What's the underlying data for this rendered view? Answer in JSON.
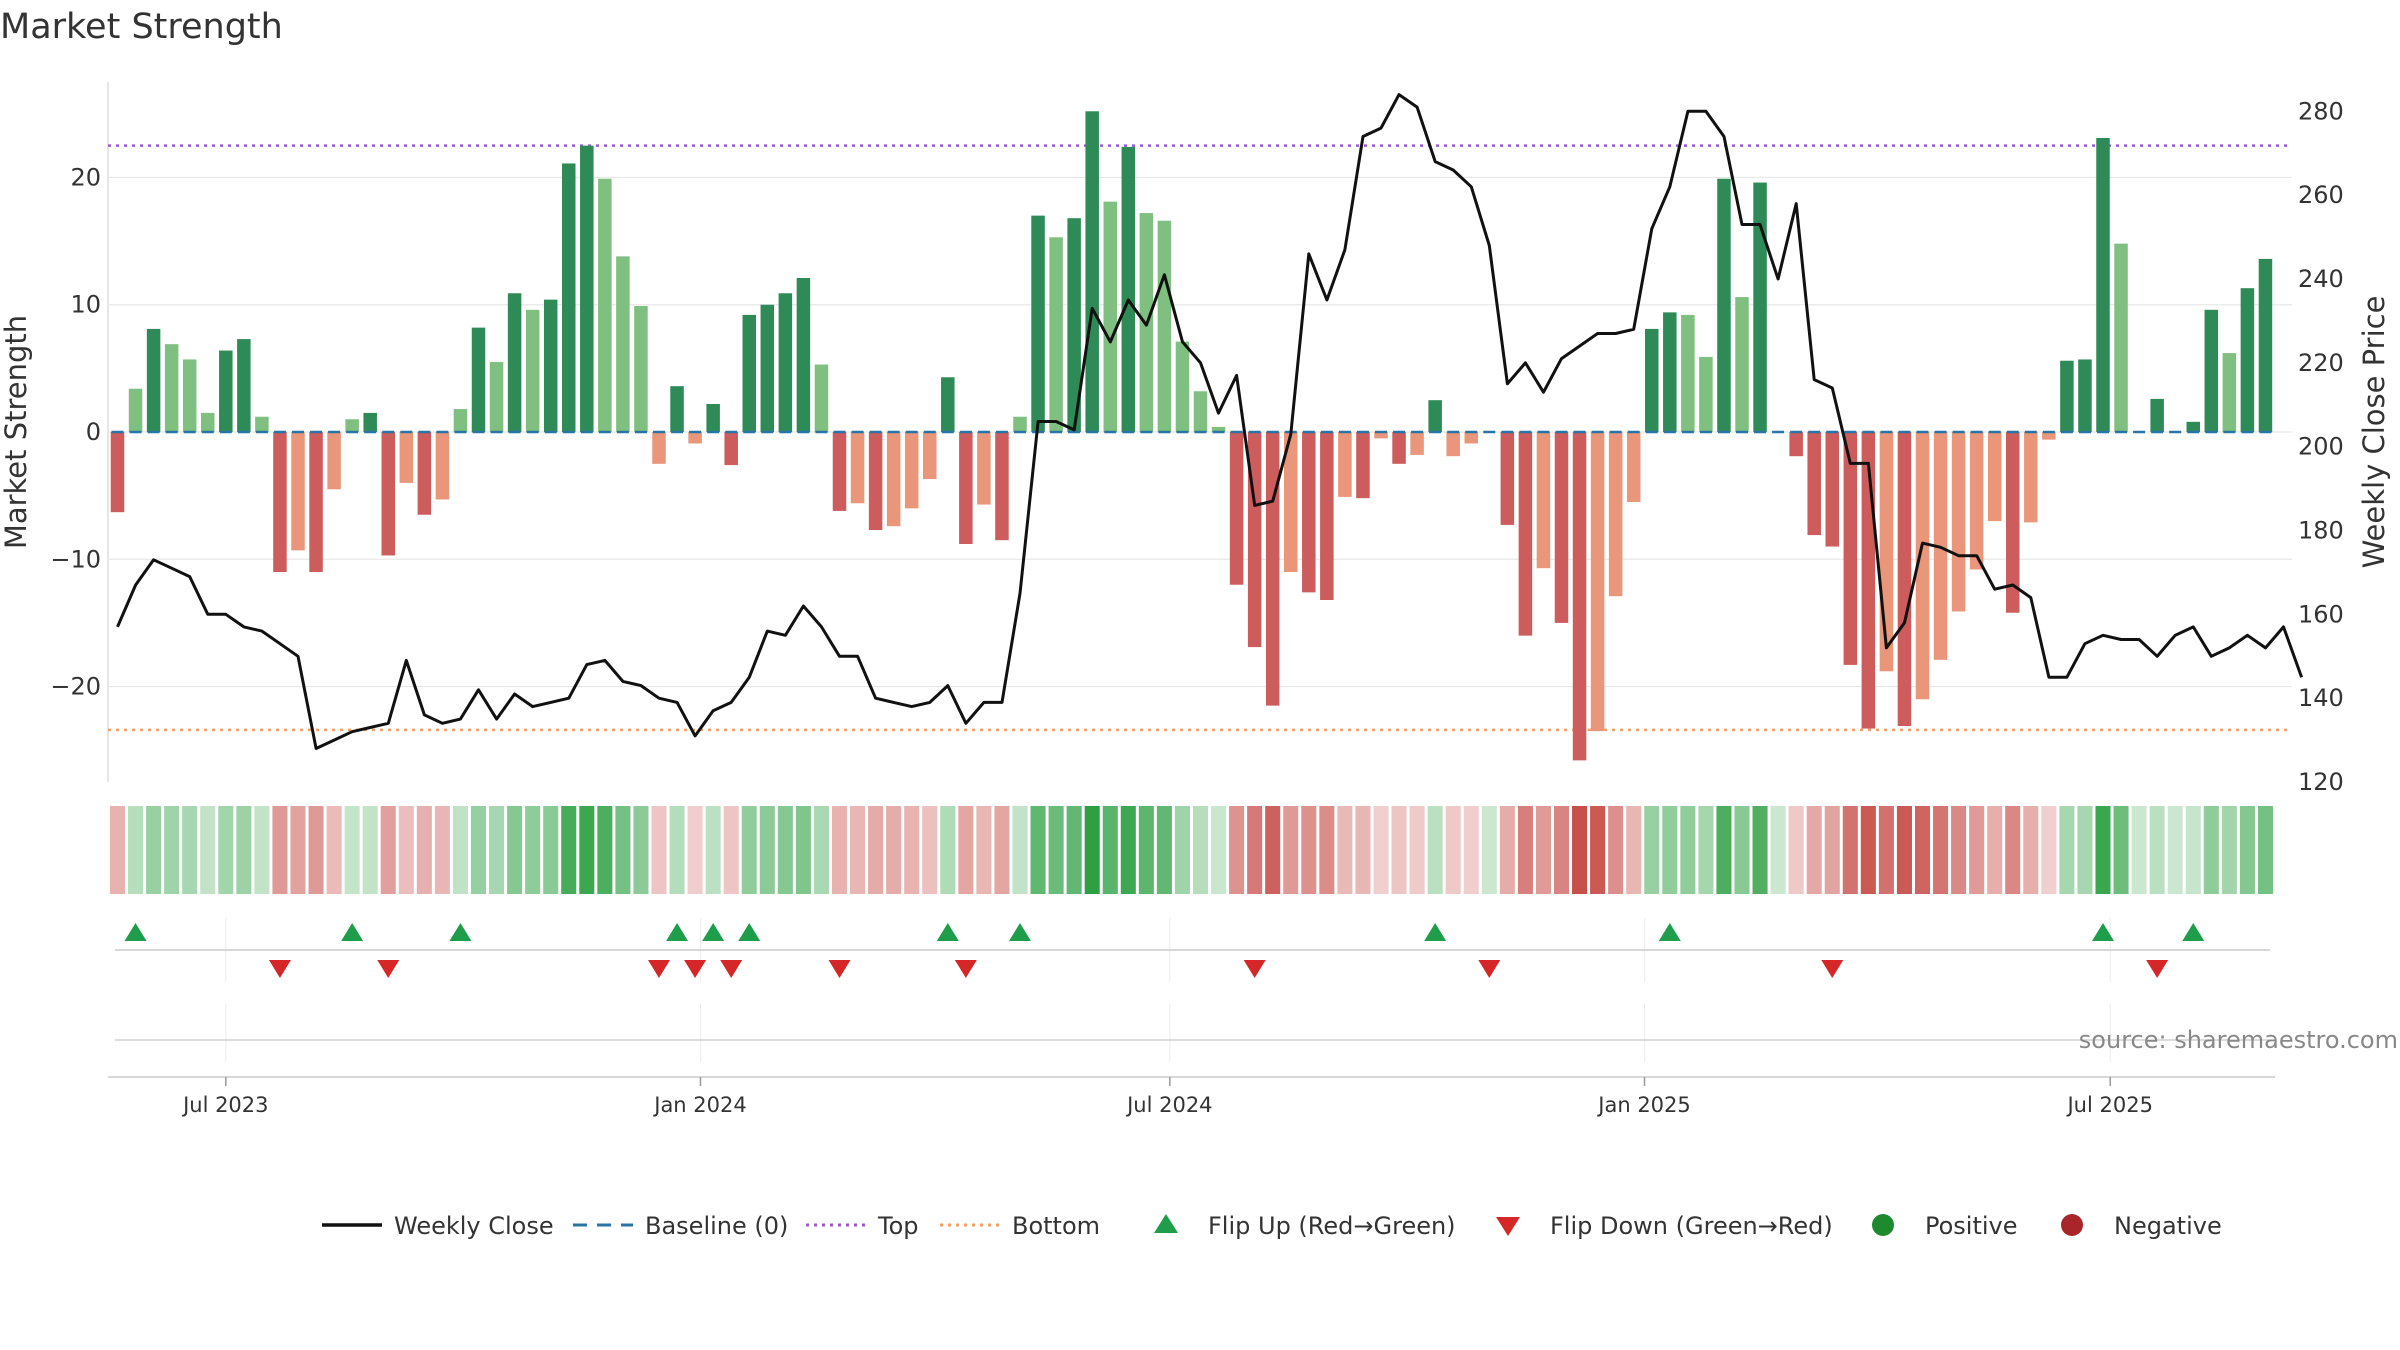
{
  "chart_data": {
    "type": "bar",
    "title": "Market Strength",
    "ylabel_left": "Market Strength",
    "ylabel_right": "Weekly Close Price",
    "ylim_left": [
      -27.5,
      27.5
    ],
    "ylim_right": [
      120,
      287
    ],
    "left_ticks": [
      {
        "v": 20,
        "label": "20"
      },
      {
        "v": 10,
        "label": "10"
      },
      {
        "v": 0,
        "label": "0"
      },
      {
        "v": -10,
        "label": "−10"
      },
      {
        "v": -20,
        "label": "−20"
      }
    ],
    "right_ticks": [
      {
        "v": 280,
        "label": "280"
      },
      {
        "v": 260,
        "label": "260"
      },
      {
        "v": 240,
        "label": "240"
      },
      {
        "v": 220,
        "label": "220"
      },
      {
        "v": 200,
        "label": "200"
      },
      {
        "v": 180,
        "label": "180"
      },
      {
        "v": 160,
        "label": "160"
      },
      {
        "v": 140,
        "label": "140"
      },
      {
        "v": 120,
        "label": "120"
      }
    ],
    "top_line": 22.5,
    "bottom_line": -23.4,
    "week_start": "2023-04-30",
    "date_ticks": [
      {
        "label": "Jul 2023",
        "week": 6
      },
      {
        "label": "Jan 2024",
        "week": 32.3
      },
      {
        "label": "Jul 2024",
        "week": 58.3
      },
      {
        "label": "Jan 2025",
        "week": 84.6
      },
      {
        "label": "Jul 2025",
        "week": 110.4
      }
    ],
    "strength": [
      -6.3,
      3.4,
      8.1,
      6.9,
      5.7,
      1.5,
      6.4,
      7.3,
      1.2,
      -11.0,
      -9.3,
      -11.0,
      -4.5,
      1.0,
      1.5,
      -9.7,
      -4.0,
      -6.5,
      -5.3,
      1.8,
      8.2,
      5.5,
      10.9,
      9.6,
      10.4,
      21.1,
      22.5,
      19.9,
      13.8,
      9.9,
      -2.5,
      3.6,
      -0.9,
      2.2,
      -2.6,
      9.2,
      10.0,
      10.9,
      12.1,
      5.3,
      -6.2,
      -5.6,
      -7.7,
      -7.4,
      -6.0,
      -3.7,
      4.3,
      -8.8,
      -5.7,
      -8.5,
      1.2,
      17.0,
      15.3,
      16.8,
      25.2,
      18.1,
      22.4,
      17.2,
      16.6,
      7.1,
      3.2,
      0.4,
      -12.0,
      -16.9,
      -21.5,
      -11.0,
      -12.6,
      -13.2,
      -5.1,
      -5.2,
      -0.5,
      -2.5,
      -1.8,
      2.5,
      -1.9,
      -0.9,
      0.0,
      -7.3,
      -16.0,
      -10.7,
      -15.0,
      -25.8,
      -23.5,
      -12.9,
      -5.5,
      8.1,
      9.4,
      9.2,
      5.9,
      19.9,
      10.6,
      19.6,
      0.0,
      -1.9,
      -8.1,
      -9.0,
      -18.3,
      -23.3,
      -18.8,
      -23.1,
      -21.0,
      -17.9,
      -14.1,
      -10.8,
      -7.0,
      -14.2,
      -7.1,
      -0.6,
      5.6,
      5.7,
      23.1,
      14.8,
      0.0,
      2.6,
      0.0,
      0.8,
      9.6,
      6.2,
      11.3,
      13.6
    ],
    "close": [
      157,
      167,
      173,
      171,
      169,
      160,
      160,
      157,
      156,
      153,
      150,
      128,
      130,
      132,
      133,
      134,
      149,
      136,
      134,
      135,
      142,
      135,
      141,
      138,
      139,
      140,
      148,
      149,
      144,
      143,
      140,
      139,
      131,
      137,
      139,
      145,
      156,
      155,
      162,
      157,
      150,
      150,
      140,
      139,
      138,
      139,
      143,
      134,
      139,
      139,
      165,
      206,
      206,
      204,
      233,
      225,
      235,
      229,
      241,
      225,
      220,
      208,
      217,
      186,
      187,
      203,
      246,
      235,
      247,
      274,
      276,
      284,
      281,
      268,
      266,
      262,
      248,
      215,
      220,
      213,
      221,
      224,
      227,
      227,
      228,
      252,
      262,
      280,
      280,
      274,
      253,
      253,
      240,
      258,
      216,
      214,
      196,
      196,
      152,
      158,
      177,
      176,
      174,
      174,
      166,
      167,
      164,
      145,
      145,
      153,
      155,
      154,
      154,
      150,
      155,
      157,
      150,
      152,
      155,
      152,
      157,
      145
    ],
    "flips_up_weeks": [
      1,
      13,
      19,
      31,
      33,
      35,
      46,
      50,
      73,
      86,
      110,
      115
    ],
    "flips_down_weeks": [
      9,
      15,
      30,
      32,
      34,
      40,
      47,
      63,
      76,
      95,
      113
    ],
    "legend": [
      {
        "label": "Weekly Close",
        "kind": "line-solid",
        "color": "#111111"
      },
      {
        "label": "Baseline (0)",
        "kind": "line-dash",
        "color": "#2874a6"
      },
      {
        "label": "Top",
        "kind": "line-dot",
        "color": "#9b59d0"
      },
      {
        "label": "Bottom",
        "kind": "line-dot",
        "color": "#f0a060"
      },
      {
        "label": "Flip Up (Red→Green)",
        "kind": "tri-up",
        "color": "#1e9e4a"
      },
      {
        "label": "Flip Down (Green→Red)",
        "kind": "tri-down",
        "color": "#d62728"
      },
      {
        "label": "Positive",
        "kind": "dot",
        "color": "#1e8a2e"
      },
      {
        "label": "Negative",
        "kind": "dot",
        "color": "#a8252a"
      }
    ],
    "source": "source: sharemaestro.com"
  },
  "colors": {
    "pos_strong": "#2e8b57",
    "pos_weak": "#7fbf7f",
    "neg_strong": "#cd5c5c",
    "neg_weak": "#e9967a",
    "grid": "#e8e8e8"
  }
}
